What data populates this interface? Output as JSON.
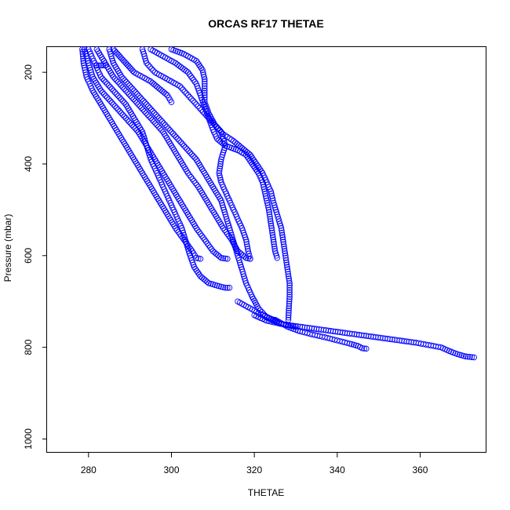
{
  "chart_data": {
    "type": "scatter",
    "title": "ORCAS RF17 THETAE",
    "xlabel": "THETAE",
    "ylabel": "Pressure (mbar)",
    "xlim": [
      270,
      376
    ],
    "ylim": [
      1030,
      145
    ],
    "y_reversed": true,
    "x_ticks": [
      "280",
      "300",
      "320",
      "340",
      "360"
    ],
    "y_ticks": [
      "200",
      "400",
      "600",
      "800",
      "1000"
    ],
    "grid": false,
    "legend": "none",
    "marker": "open-circle",
    "marker_color": "#0000ff",
    "series": [
      {
        "values": [
          [
            278.5,
            150
          ],
          [
            278.8,
            180
          ],
          [
            279.5,
            210
          ],
          [
            281,
            240
          ],
          [
            283,
            270
          ],
          [
            285,
            300
          ],
          [
            287,
            330
          ],
          [
            289,
            360
          ],
          [
            291,
            390
          ],
          [
            293,
            420
          ],
          [
            295,
            450
          ],
          [
            297,
            480
          ],
          [
            299,
            510
          ],
          [
            301,
            540
          ],
          [
            303,
            565
          ],
          [
            305,
            590
          ],
          [
            306,
            605
          ],
          [
            307,
            607
          ]
        ]
      },
      {
        "values": [
          [
            279,
            150
          ],
          [
            280,
            180
          ],
          [
            281,
            210
          ],
          [
            283,
            240
          ],
          [
            286,
            270
          ],
          [
            289,
            300
          ],
          [
            292,
            330
          ],
          [
            294,
            360
          ],
          [
            296,
            390
          ],
          [
            298,
            420
          ],
          [
            300,
            450
          ],
          [
            302,
            480
          ],
          [
            304,
            510
          ],
          [
            306,
            540
          ],
          [
            308,
            565
          ],
          [
            310,
            590
          ],
          [
            312,
            605
          ],
          [
            313.5,
            607
          ]
        ]
      },
      {
        "values": [
          [
            280,
            150
          ],
          [
            281.5,
            180
          ],
          [
            283,
            210
          ],
          [
            286,
            240
          ],
          [
            289,
            270
          ],
          [
            291,
            300
          ],
          [
            293,
            330
          ],
          [
            294,
            360
          ],
          [
            295,
            390
          ],
          [
            296.5,
            420
          ],
          [
            298,
            450
          ],
          [
            299.5,
            480
          ],
          [
            301,
            510
          ],
          [
            302.5,
            540
          ],
          [
            303.5,
            570
          ],
          [
            304.5,
            600
          ],
          [
            305.5,
            625
          ],
          [
            307,
            645
          ],
          [
            309,
            660
          ],
          [
            312,
            668
          ],
          [
            313,
            670
          ],
          [
            314,
            670
          ]
        ]
      },
      {
        "values": [
          [
            282,
            150
          ],
          [
            284,
            180
          ],
          [
            286,
            210
          ],
          [
            289,
            240
          ],
          [
            292,
            270
          ],
          [
            295,
            300
          ],
          [
            298,
            330
          ],
          [
            300,
            360
          ],
          [
            302,
            390
          ],
          [
            304,
            420
          ],
          [
            306.5,
            450
          ],
          [
            308.5,
            480
          ],
          [
            310.5,
            510
          ],
          [
            312.5,
            540
          ],
          [
            314.5,
            565
          ],
          [
            316,
            590
          ],
          [
            318,
            605
          ],
          [
            319,
            607
          ]
        ]
      },
      {
        "values": [
          [
            285,
            150
          ],
          [
            286,
            180
          ],
          [
            288,
            210
          ],
          [
            291,
            240
          ],
          [
            294,
            270
          ],
          [
            297,
            300
          ],
          [
            300,
            330
          ],
          [
            303,
            360
          ],
          [
            306,
            390
          ],
          [
            308,
            420
          ],
          [
            310,
            450
          ],
          [
            312,
            480
          ],
          [
            313,
            510
          ],
          [
            314,
            540
          ],
          [
            315,
            570
          ],
          [
            316,
            600
          ],
          [
            317,
            630
          ],
          [
            318,
            660
          ],
          [
            319.5,
            690
          ],
          [
            321,
            715
          ],
          [
            323,
            735
          ],
          [
            326,
            748
          ],
          [
            330,
            755
          ]
        ]
      },
      {
        "values": [
          [
            293,
            150
          ],
          [
            294,
            180
          ],
          [
            296,
            200
          ],
          [
            299,
            215
          ],
          [
            302,
            230
          ],
          [
            304,
            250
          ],
          [
            306,
            270
          ],
          [
            308,
            290
          ],
          [
            310,
            310
          ],
          [
            312,
            330
          ],
          [
            313,
            360
          ],
          [
            312,
            390
          ],
          [
            311.5,
            420
          ],
          [
            312,
            440
          ],
          [
            313,
            460
          ],
          [
            314,
            480
          ],
          [
            315,
            500
          ],
          [
            316,
            520
          ],
          [
            317,
            540
          ],
          [
            318,
            565
          ],
          [
            318.5,
            590
          ],
          [
            319,
            607
          ]
        ]
      },
      {
        "values": [
          [
            295,
            150
          ],
          [
            298,
            165
          ],
          [
            301,
            180
          ],
          [
            304,
            200
          ],
          [
            306,
            225
          ],
          [
            307,
            250
          ],
          [
            308,
            275
          ],
          [
            309,
            300
          ],
          [
            310,
            325
          ],
          [
            311,
            345
          ],
          [
            313,
            360
          ],
          [
            316,
            370
          ],
          [
            318,
            380
          ],
          [
            319.5,
            400
          ],
          [
            321,
            420
          ],
          [
            322,
            440
          ],
          [
            322.5,
            460
          ],
          [
            323,
            480
          ],
          [
            323.5,
            500
          ],
          [
            324,
            530
          ],
          [
            324.5,
            560
          ],
          [
            325,
            590
          ],
          [
            325.5,
            605
          ]
        ]
      },
      {
        "values": [
          [
            300,
            150
          ],
          [
            303,
            160
          ],
          [
            306,
            175
          ],
          [
            307.5,
            195
          ],
          [
            308,
            215
          ],
          [
            308,
            240
          ],
          [
            308,
            265
          ],
          [
            309,
            290
          ],
          [
            310.5,
            315
          ],
          [
            312.5,
            335
          ],
          [
            315,
            350
          ],
          [
            317,
            365
          ],
          [
            319,
            380
          ],
          [
            320.5,
            400
          ],
          [
            322,
            420
          ],
          [
            323,
            440
          ],
          [
            324,
            460
          ],
          [
            324.5,
            480
          ],
          [
            325.5,
            510
          ],
          [
            326.5,
            540
          ],
          [
            327,
            570
          ],
          [
            327.5,
            600
          ],
          [
            328,
            630
          ],
          [
            328.5,
            660
          ],
          [
            328.5,
            690
          ],
          [
            328.3,
            720
          ],
          [
            328.2,
            740
          ]
        ]
      },
      {
        "values": [
          [
            282,
            185
          ],
          [
            283,
            185
          ],
          [
            284,
            185
          ]
        ]
      },
      {
        "values": [
          [
            286,
            150
          ],
          [
            287,
            160
          ],
          [
            288,
            170
          ],
          [
            289,
            180
          ],
          [
            290,
            190
          ],
          [
            291,
            200
          ],
          [
            293,
            210
          ],
          [
            295,
            220
          ],
          [
            297,
            235
          ],
          [
            299,
            250
          ],
          [
            300,
            265
          ]
        ]
      },
      {
        "values": [
          [
            320,
            730
          ],
          [
            323,
            742
          ],
          [
            327,
            750
          ],
          [
            331,
            755
          ],
          [
            335,
            760
          ],
          [
            339,
            765
          ],
          [
            343,
            770
          ],
          [
            347,
            775
          ],
          [
            351,
            780
          ],
          [
            355,
            785
          ],
          [
            359,
            790
          ],
          [
            362,
            795
          ],
          [
            365,
            800
          ],
          [
            367,
            808
          ],
          [
            369,
            815
          ],
          [
            371,
            820
          ],
          [
            373,
            822
          ]
        ]
      },
      {
        "values": [
          [
            325,
            740
          ],
          [
            328,
            755
          ],
          [
            331,
            765
          ],
          [
            334,
            772
          ],
          [
            337,
            778
          ],
          [
            340,
            785
          ],
          [
            343,
            792
          ],
          [
            345,
            797
          ],
          [
            346,
            802
          ],
          [
            347,
            803
          ]
        ]
      },
      {
        "values": [
          [
            316,
            700
          ],
          [
            318,
            710
          ],
          [
            320,
            720
          ],
          [
            322,
            730
          ],
          [
            326,
            745
          ]
        ]
      }
    ]
  }
}
